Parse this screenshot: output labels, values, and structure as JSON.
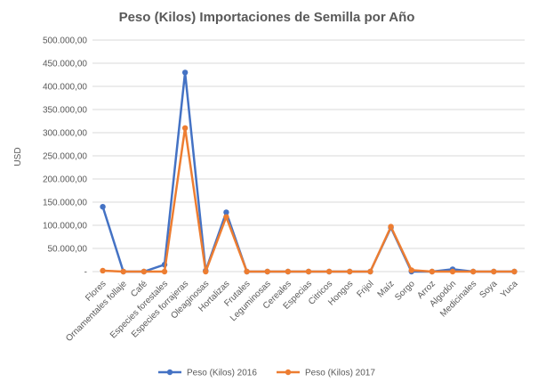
{
  "chart_data": {
    "type": "line",
    "title": "Peso (Kilos) Importaciones de Semilla por Año",
    "xlabel": "",
    "ylabel": "USD",
    "ylim": [
      0,
      500000
    ],
    "yticks": [
      0,
      50000,
      100000,
      150000,
      200000,
      250000,
      300000,
      350000,
      400000,
      450000,
      500000
    ],
    "ytick_labels": [
      "-",
      "50.000,00",
      "100.000,00",
      "150.000,00",
      "200.000,00",
      "250.000,00",
      "300.000,00",
      "350.000,00",
      "400.000,00",
      "450.000,00",
      "500.000,00"
    ],
    "grid": true,
    "legend_position": "bottom",
    "categories": [
      "Flores",
      "Ornamentales follaje",
      "Café",
      "Especies forestales",
      "Especies forrajeras",
      "Oleaginosas",
      "Hortalizas",
      "Frutales",
      "Leguminosas",
      "Cereales",
      "Especias",
      "Citricos",
      "Hongos",
      "Frijol",
      "Maíz",
      "Sorgo",
      "Arroz",
      "Algodón",
      "Medicinales",
      "Soya",
      "Yuca"
    ],
    "series": [
      {
        "name": "Peso (Kilos) 2016",
        "color": "#4472c4",
        "values": [
          140000,
          0,
          0,
          15000,
          430000,
          2000,
          128000,
          0,
          0,
          0,
          0,
          0,
          0,
          0,
          95000,
          0,
          0,
          5000,
          0,
          0,
          0
        ]
      },
      {
        "name": "Peso (Kilos) 2017",
        "color": "#ed7d31",
        "values": [
          2000,
          0,
          0,
          0,
          310000,
          0,
          118000,
          0,
          0,
          0,
          0,
          0,
          0,
          0,
          97000,
          3000,
          0,
          0,
          0,
          0,
          0
        ]
      }
    ]
  }
}
